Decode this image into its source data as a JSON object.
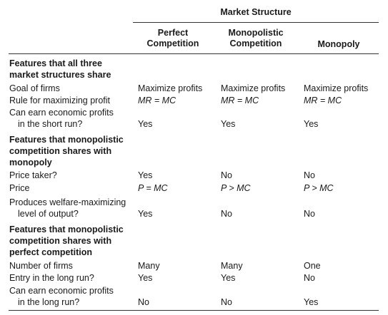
{
  "header": {
    "group_title": "Market Structure",
    "columns": [
      {
        "line1": "Perfect",
        "line2": "Competition"
      },
      {
        "line1": "Monopolistic",
        "line2": "Competition"
      },
      {
        "line1": "",
        "line2": "Monopoly"
      }
    ]
  },
  "sections": [
    {
      "heading": [
        "Features that all three",
        "market structures share"
      ],
      "rows": [
        {
          "label": [
            "Goal of firms"
          ],
          "values": [
            "Maximize profits",
            "Maximize profits",
            "Maximize profits"
          ]
        },
        {
          "label": [
            "Rule for maximizing profit"
          ],
          "values": [
            "MR = MC",
            "MR = MC",
            "MR = MC"
          ]
        },
        {
          "label": [
            "Can earn economic profits",
            "in the short run?"
          ],
          "values": [
            "Yes",
            "Yes",
            "Yes"
          ]
        }
      ]
    },
    {
      "heading": [
        "Features that monopolistic",
        "competition shares with",
        "monopoly"
      ],
      "rows": [
        {
          "label": [
            "Price taker?"
          ],
          "values": [
            "Yes",
            "No",
            "No"
          ]
        },
        {
          "label": [
            "Price"
          ],
          "values": [
            "P = MC",
            "P > MC",
            "P > MC"
          ]
        },
        {
          "label": [
            "Produces welfare-maximizing",
            "level of output?"
          ],
          "values": [
            "Yes",
            "No",
            "No"
          ]
        }
      ]
    },
    {
      "heading": [
        "Features that monopolistic",
        "competition shares with",
        "perfect competition"
      ],
      "rows": [
        {
          "label": [
            "Number of firms"
          ],
          "values": [
            "Many",
            "Many",
            "One"
          ]
        },
        {
          "label": [
            "Entry in the long run?"
          ],
          "values": [
            "Yes",
            "Yes",
            "No"
          ]
        },
        {
          "label": [
            "Can earn economic profits",
            "in the long run?"
          ],
          "values": [
            "No",
            "No",
            "Yes"
          ]
        }
      ]
    }
  ]
}
